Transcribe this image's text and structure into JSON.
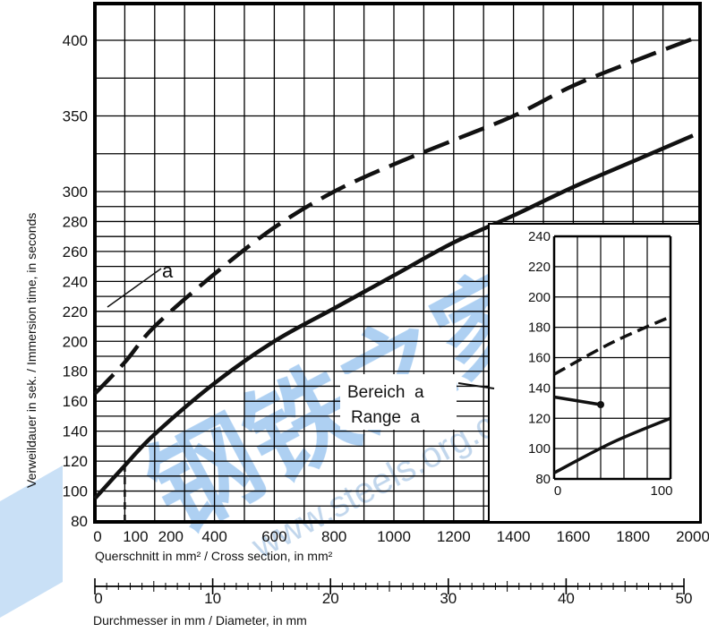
{
  "chart_data": [
    {
      "type": "line",
      "xlabel": "Querschnitt in mm² / Cross section, in mm²",
      "ylabel": "Verweildauer in sek. / Immersion time, in seconds",
      "secondary_xlabel": "Durchmesser in mm / Diameter, in mm",
      "xlim": [
        0,
        2000
      ],
      "ylim_description": "non-linear: 80–300 in 20 s steps, 300–400 in 50 s steps",
      "x_ticks": [
        "0",
        "100",
        "200",
        "400",
        "600",
        "800",
        "1000",
        "1200",
        "1400",
        "1600",
        "1800",
        "2000"
      ],
      "y_ticks": [
        "80",
        "100",
        "120",
        "140",
        "160",
        "180",
        "200",
        "220",
        "240",
        "260",
        "280",
        "300",
        "350",
        "400"
      ],
      "secondary_x_ticks": [
        "0",
        "10",
        "20",
        "30",
        "40",
        "50"
      ],
      "grid": true,
      "series": [
        {
          "style": "dashed",
          "x": [
            0,
            100,
            200,
            400,
            600,
            800,
            1000,
            1200,
            1400,
            1600,
            1800,
            2000
          ],
          "y": [
            165,
            186,
            210,
            245,
            276,
            300,
            318,
            334,
            350,
            370,
            386,
            401
          ]
        },
        {
          "style": "solid",
          "x": [
            0,
            100,
            200,
            400,
            600,
            800,
            1000,
            1200,
            1400,
            1600,
            1800,
            2000
          ],
          "y": [
            95,
            117,
            138,
            172,
            200,
            222,
            244,
            266,
            284,
            303,
            320,
            337
          ]
        }
      ],
      "annotations": [
        {
          "text": "a",
          "target": "upper band line near x≈100"
        },
        {
          "text": "Bereich  a",
          "target": "inset"
        },
        {
          "text": "Range  a",
          "target": "inset"
        }
      ]
    },
    {
      "type": "line",
      "role": "inset",
      "xlim": [
        0,
        100
      ],
      "ylim": [
        80,
        240
      ],
      "x_ticks": [
        "0",
        "100"
      ],
      "y_ticks": [
        "80",
        "100",
        "120",
        "140",
        "160",
        "180",
        "200",
        "220",
        "240"
      ],
      "grid": true,
      "series": [
        {
          "style": "dashed",
          "x": [
            0,
            50,
            100
          ],
          "y": [
            149,
            170,
            187
          ]
        },
        {
          "style": "solid",
          "x": [
            0,
            50,
            100
          ],
          "y": [
            84,
            104,
            120
          ]
        },
        {
          "style": "solid",
          "x": [
            0,
            40
          ],
          "y": [
            134,
            129
          ]
        }
      ]
    }
  ],
  "watermark": {
    "text": "www.steels.org.cn",
    "cjk": "钢铁之家"
  }
}
